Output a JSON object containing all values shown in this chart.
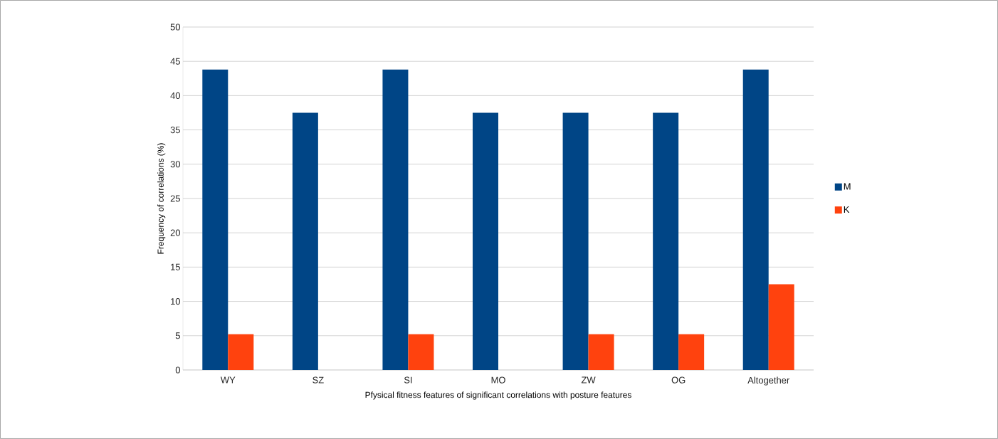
{
  "chart_data": {
    "type": "bar",
    "xlabel": "Pfysical fitness features of significant correlations with posture features",
    "ylabel": "Frequency of correlations (%)",
    "categories": [
      "WY",
      "SZ",
      "SI",
      "MO",
      "ZW",
      "OG",
      "Altogether"
    ],
    "series": [
      {
        "name": "M",
        "color": "#004586",
        "values": [
          43.8,
          37.5,
          43.8,
          37.5,
          37.5,
          37.5,
          43.8
        ]
      },
      {
        "name": "K",
        "color": "#ff420e",
        "values": [
          5.2,
          0,
          5.2,
          0,
          5.2,
          5.2,
          12.5
        ]
      }
    ],
    "ylim": [
      0,
      50
    ],
    "yticks": [
      0,
      5,
      10,
      15,
      20,
      25,
      30,
      35,
      40,
      45,
      50
    ],
    "grid": "y",
    "legend": "right"
  }
}
